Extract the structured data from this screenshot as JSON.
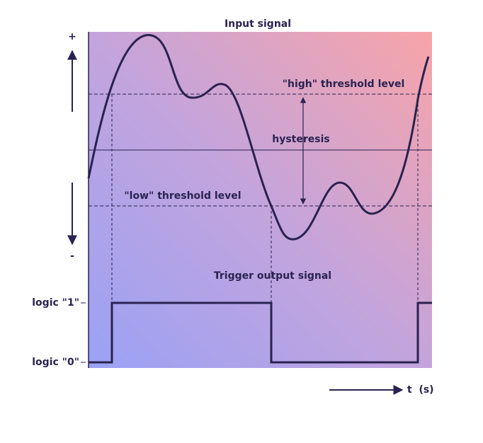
{
  "title": "Input signal",
  "axis": {
    "plus": "+",
    "minus": "-"
  },
  "thresholds": {
    "high": "\"high\" threshold level",
    "hysteresis": "hysteresis",
    "low": "\"low\" threshold level"
  },
  "output": {
    "title": "Trigger output signal",
    "logic_high": "logic \"1\"",
    "logic_low": "logic \"0\""
  },
  "time_axis": "t  (s)"
}
